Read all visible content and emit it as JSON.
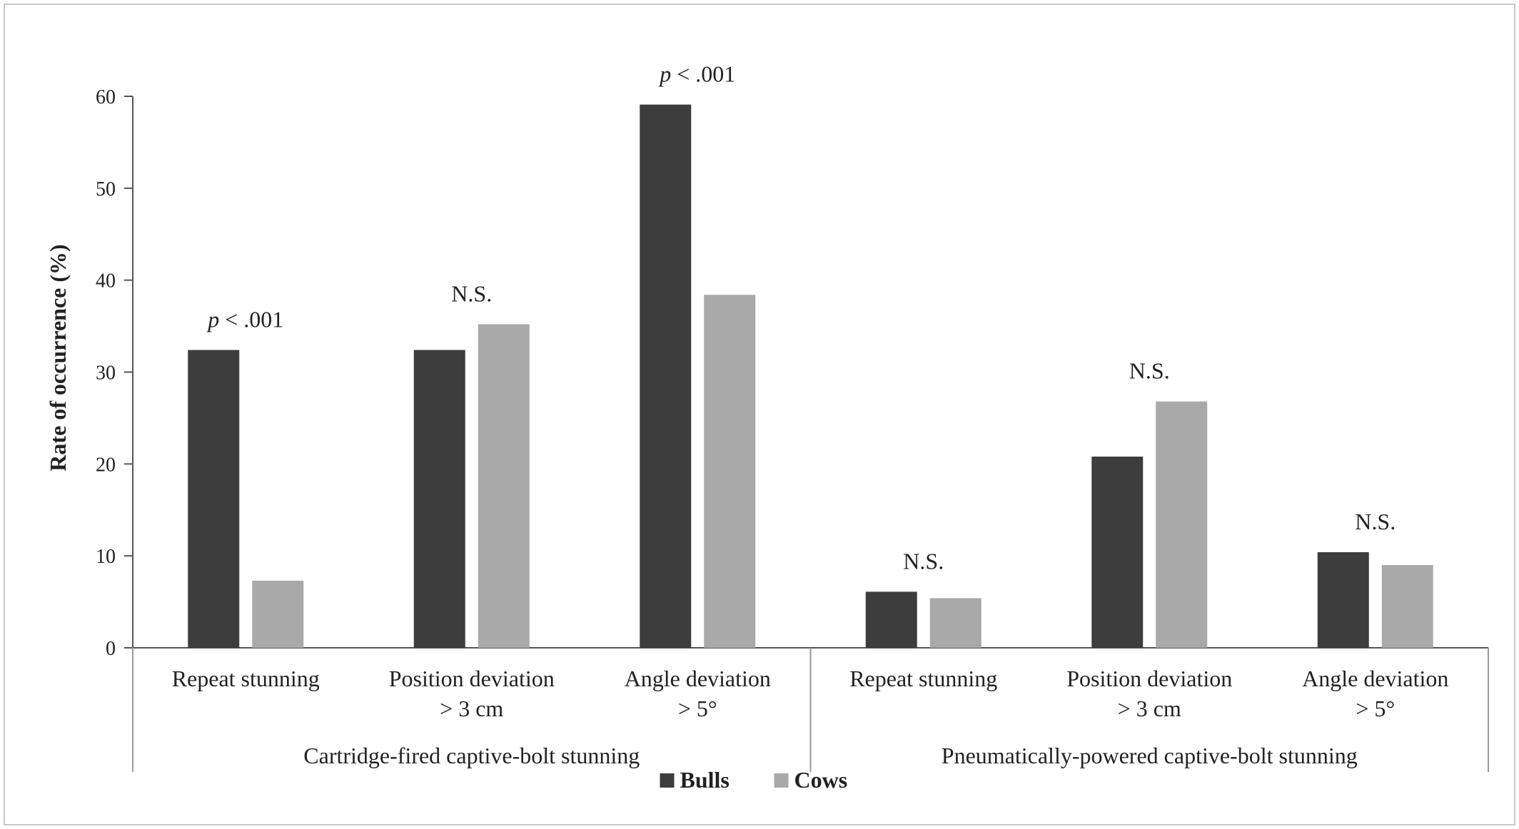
{
  "chart_data": {
    "type": "bar",
    "ylabel": "Rate of occurrence (%)",
    "ylim": [
      0,
      60
    ],
    "yticks": [
      0,
      10,
      20,
      30,
      40,
      50,
      60
    ],
    "grid": false,
    "legend_position": "bottom-center",
    "groups": [
      {
        "label": "Cartridge-fired captive-bolt stunning",
        "span": [
          0,
          2
        ]
      },
      {
        "label": "Pneumatically-powered captive-bolt stunning",
        "span": [
          3,
          5
        ]
      }
    ],
    "categories": [
      [
        "Repeat stunning"
      ],
      [
        "Position deviation",
        "> 3 cm"
      ],
      [
        "Angle deviation",
        "> 5°"
      ],
      [
        "Repeat stunning"
      ],
      [
        "Position deviation",
        "> 3 cm"
      ],
      [
        "Angle deviation",
        "> 5°"
      ]
    ],
    "series": [
      {
        "name": "Bulls",
        "color": "#3d3d3d",
        "values": [
          32.4,
          32.4,
          59.1,
          6.1,
          20.8,
          10.4
        ]
      },
      {
        "name": "Cows",
        "color": "#a9a9a9",
        "values": [
          7.3,
          35.2,
          38.4,
          5.4,
          26.8,
          9.0
        ]
      }
    ],
    "annotations": [
      {
        "category": 0,
        "text": "< .001",
        "prefix_italic": "p",
        "anchor_value": 32.4
      },
      {
        "category": 1,
        "text": "N.S.",
        "prefix_italic": "",
        "anchor_value": 35.2
      },
      {
        "category": 2,
        "text": "< .001",
        "prefix_italic": "p",
        "anchor_value": 59.1
      },
      {
        "category": 3,
        "text": "N.S.",
        "prefix_italic": "",
        "anchor_value": 6.1
      },
      {
        "category": 4,
        "text": "N.S.",
        "prefix_italic": "",
        "anchor_value": 26.8
      },
      {
        "category": 5,
        "text": "N.S.",
        "prefix_italic": "",
        "anchor_value": 10.4
      }
    ]
  }
}
